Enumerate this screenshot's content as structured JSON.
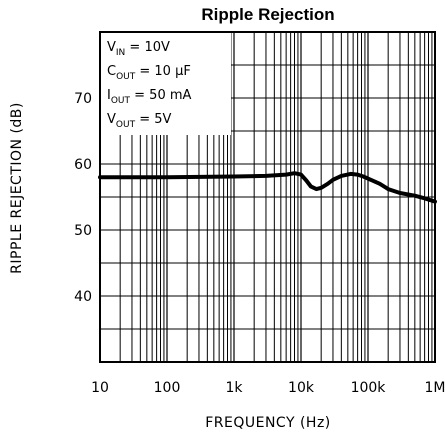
{
  "chart_data": {
    "type": "line",
    "title": "Ripple Rejection",
    "xlabel": "FREQUENCY (Hz)",
    "ylabel": "RIPPLE REJECTION (dB)",
    "xscale": "log",
    "xlim": [
      10,
      1000000
    ],
    "ylim": [
      30,
      80
    ],
    "grid": true,
    "x_tick_labels": [
      "10",
      "100",
      "1k",
      "10k",
      "100k",
      "1M"
    ],
    "x_tick_values": [
      10,
      100,
      1000,
      10000,
      100000,
      1000000
    ],
    "y_tick_labels": [
      "40",
      "50",
      "60",
      "70"
    ],
    "y_tick_values": [
      40,
      50,
      60,
      70
    ],
    "conditions": [
      {
        "main": "V",
        "sub": "IN",
        "rest": " = 10V"
      },
      {
        "main": "C",
        "sub": "OUT",
        "rest": " = 10 µF"
      },
      {
        "main": "I",
        "sub": "OUT",
        "rest": " = 50 mA"
      },
      {
        "main": "V",
        "sub": "OUT",
        "rest": " = 5V"
      }
    ],
    "series": [
      {
        "x": [
          10,
          100,
          1000,
          3000,
          6000,
          8000,
          10000,
          12000,
          14000,
          17000,
          20000,
          25000,
          30000,
          40000,
          55000,
          70000,
          85000,
          110000,
          150000,
          200000,
          300000,
          500000,
          700000,
          1000000
        ],
        "values": [
          58,
          58,
          58.1,
          58.2,
          58.4,
          58.6,
          58.4,
          57.5,
          56.6,
          56.2,
          56.4,
          57.0,
          57.6,
          58.2,
          58.5,
          58.4,
          58.1,
          57.6,
          57.0,
          56.2,
          55.6,
          55.2,
          54.8,
          54.3
        ]
      }
    ]
  }
}
